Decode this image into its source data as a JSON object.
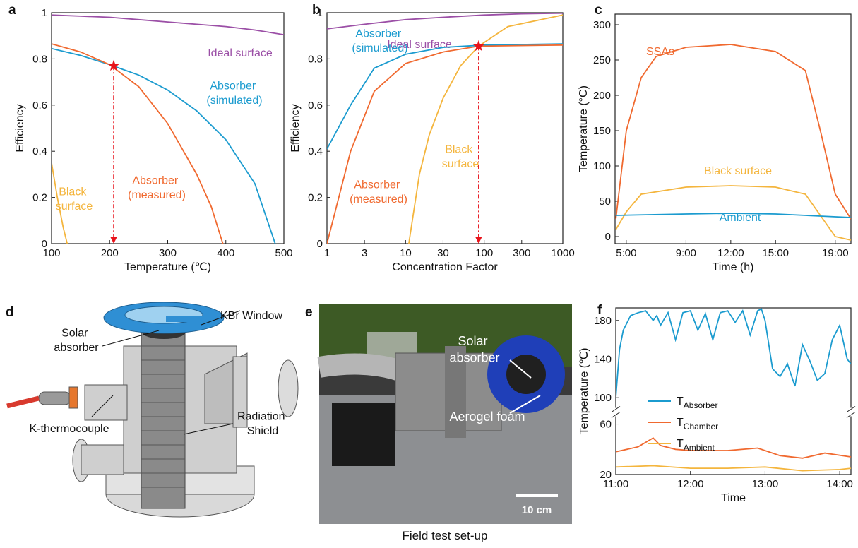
{
  "chart_data": [
    {
      "type": "line",
      "panel": "a",
      "x_label": "Temperature (℃)",
      "y_label": "Efficiency",
      "xlim": [
        100,
        500
      ],
      "xticks": [
        100,
        200,
        300,
        400,
        500
      ],
      "ylim": [
        0,
        1
      ],
      "yticks": [
        0,
        0.2,
        0.4,
        0.6,
        0.8,
        1
      ],
      "series": [
        {
          "name": "Ideal surface",
          "color": "#9b4fa6",
          "x": [
            100,
            150,
            200,
            250,
            300,
            350,
            400,
            450,
            500
          ],
          "values": [
            0.99,
            0.985,
            0.98,
            0.97,
            0.96,
            0.95,
            0.94,
            0.925,
            0.905
          ]
        },
        {
          "name": "Absorber (simulated)",
          "color": "#1b9bcf",
          "x": [
            100,
            150,
            200,
            250,
            300,
            350,
            400,
            450,
            485
          ],
          "values": [
            0.845,
            0.815,
            0.775,
            0.73,
            0.665,
            0.575,
            0.45,
            0.26,
            0
          ]
        },
        {
          "name": "Absorber (measured)",
          "color": "#f0692f",
          "x": [
            100,
            150,
            200,
            250,
            300,
            350,
            375,
            395
          ],
          "values": [
            0.865,
            0.83,
            0.775,
            0.68,
            0.52,
            0.3,
            0.16,
            0
          ]
        },
        {
          "name": "Black surface",
          "color": "#f4b53d",
          "x": [
            100,
            110,
            120,
            127
          ],
          "values": [
            0.35,
            0.2,
            0.07,
            0
          ]
        }
      ],
      "marker": {
        "x": 207,
        "y": 0.77
      }
    },
    {
      "type": "line",
      "panel": "b",
      "x_label": "Concentration Factor",
      "y_label": "Efficiency",
      "xscale": "log",
      "xlim": [
        1,
        1000
      ],
      "xticks": [
        1,
        3,
        10,
        30,
        100,
        300,
        1000
      ],
      "ylim": [
        0,
        1
      ],
      "yticks": [
        0,
        0.2,
        0.4,
        0.6,
        0.8,
        1
      ],
      "series": [
        {
          "name": "Ideal surface",
          "color": "#9b4fa6",
          "x": [
            1,
            3,
            10,
            30,
            100,
            300,
            1000
          ],
          "values": [
            0.93,
            0.95,
            0.97,
            0.98,
            0.99,
            0.995,
            0.998
          ]
        },
        {
          "name": "Absorber (simulated)",
          "color": "#1b9bcf",
          "x": [
            1,
            2,
            4,
            10,
            30,
            100,
            1000
          ],
          "values": [
            0.41,
            0.6,
            0.76,
            0.82,
            0.85,
            0.86,
            0.865
          ]
        },
        {
          "name": "Absorber (measured)",
          "color": "#f0692f",
          "x": [
            1,
            2,
            4,
            10,
            30,
            85,
            1000
          ],
          "values": [
            0,
            0.4,
            0.66,
            0.78,
            0.83,
            0.855,
            0.86
          ]
        },
        {
          "name": "Black surface",
          "color": "#f4b53d",
          "x": [
            11,
            15,
            20,
            30,
            50,
            85,
            200,
            1000
          ],
          "values": [
            0,
            0.3,
            0.47,
            0.63,
            0.77,
            0.855,
            0.94,
            0.99
          ]
        }
      ],
      "marker": {
        "x": 85,
        "y": 0.855
      }
    },
    {
      "type": "line",
      "panel": "c",
      "x_label": "Time (h)",
      "y_label": "Temperature (°C)",
      "xlim": [
        4.25,
        20.05
      ],
      "xticks": [
        {
          "value": 5,
          "label": "5:00"
        },
        {
          "value": 9,
          "label": "9:00"
        },
        {
          "value": 12,
          "label": "12:00"
        },
        {
          "value": 15,
          "label": "15:00"
        },
        {
          "value": 19,
          "label": "19:00"
        }
      ],
      "ylim": [
        -10,
        315
      ],
      "yticks": [
        0,
        50,
        100,
        150,
        200,
        250,
        300
      ],
      "series": [
        {
          "name": "SSAs",
          "color": "#f0692f",
          "x": [
            4.3,
            5,
            6,
            7,
            9,
            12,
            15,
            17,
            18,
            19,
            20.05
          ],
          "values": [
            25,
            150,
            225,
            255,
            268,
            272,
            262,
            235,
            150,
            60,
            25
          ]
        },
        {
          "name": "Black surface",
          "color": "#f4b53d",
          "x": [
            4.3,
            5,
            6,
            9,
            12,
            15,
            17,
            18,
            19,
            20.05
          ],
          "values": [
            10,
            35,
            60,
            70,
            72,
            70,
            60,
            30,
            0,
            -5
          ]
        },
        {
          "name": "Ambient",
          "color": "#1b9bcf",
          "x": [
            4.3,
            9,
            12,
            15,
            20.05
          ],
          "values": [
            30,
            32,
            33,
            32,
            27
          ]
        }
      ]
    },
    {
      "type": "line",
      "panel": "f",
      "x_label": "Time",
      "y_label": "Temperature (℃)",
      "xlim": [
        11,
        14.15
      ],
      "xticks": [
        {
          "value": 11,
          "label": "11:00"
        },
        {
          "value": 12,
          "label": "12:00"
        },
        {
          "value": 13,
          "label": "13:00"
        },
        {
          "value": 14,
          "label": "14:00"
        }
      ],
      "ylim": [
        20,
        193
      ],
      "ybreak": [
        62,
        95
      ],
      "yticks": [
        20,
        60,
        100,
        140,
        180
      ],
      "legend": "lower left",
      "series": [
        {
          "name": "TAbsorber",
          "color": "#1b9bcf",
          "x": [
            11.0,
            11.05,
            11.1,
            11.2,
            11.3,
            11.4,
            11.5,
            11.55,
            11.6,
            11.7,
            11.8,
            11.9,
            12.0,
            12.1,
            12.2,
            12.3,
            12.4,
            12.5,
            12.6,
            12.7,
            12.8,
            12.9,
            12.95,
            13.0,
            13.1,
            13.2,
            13.3,
            13.4,
            13.5,
            13.6,
            13.7,
            13.8,
            13.9,
            14.0,
            14.1,
            14.15
          ],
          "values": [
            100,
            150,
            170,
            185,
            188,
            190,
            180,
            185,
            175,
            188,
            160,
            188,
            190,
            170,
            187,
            160,
            188,
            190,
            178,
            190,
            165,
            190,
            192,
            180,
            130,
            122,
            135,
            112,
            155,
            138,
            118,
            125,
            160,
            175,
            140,
            135
          ]
        },
        {
          "name": "TChamber",
          "color": "#f0692f",
          "x": [
            11,
            11.3,
            11.5,
            11.6,
            11.8,
            12,
            12.5,
            12.9,
            13.2,
            13.5,
            13.8,
            14.15
          ],
          "values": [
            38,
            42,
            49,
            43,
            40,
            39,
            39,
            41,
            35,
            33,
            37,
            34
          ]
        },
        {
          "name": "TAmbient",
          "color": "#f4b53d",
          "x": [
            11,
            11.5,
            12,
            12.5,
            13,
            13.5,
            14,
            14.15
          ],
          "values": [
            26,
            27,
            25,
            25,
            26,
            23,
            24,
            25
          ]
        }
      ]
    }
  ],
  "panel_d": {
    "label": "d",
    "callouts": [
      "KBr Window",
      "Solar absorber",
      "K-thermocouple",
      "Radiation Shield"
    ]
  },
  "panel_e": {
    "label": "e",
    "callouts": [
      "Solar absorber",
      "Aerogel foam"
    ],
    "scale_bar": "10 cm",
    "caption": "Field test set-up"
  }
}
